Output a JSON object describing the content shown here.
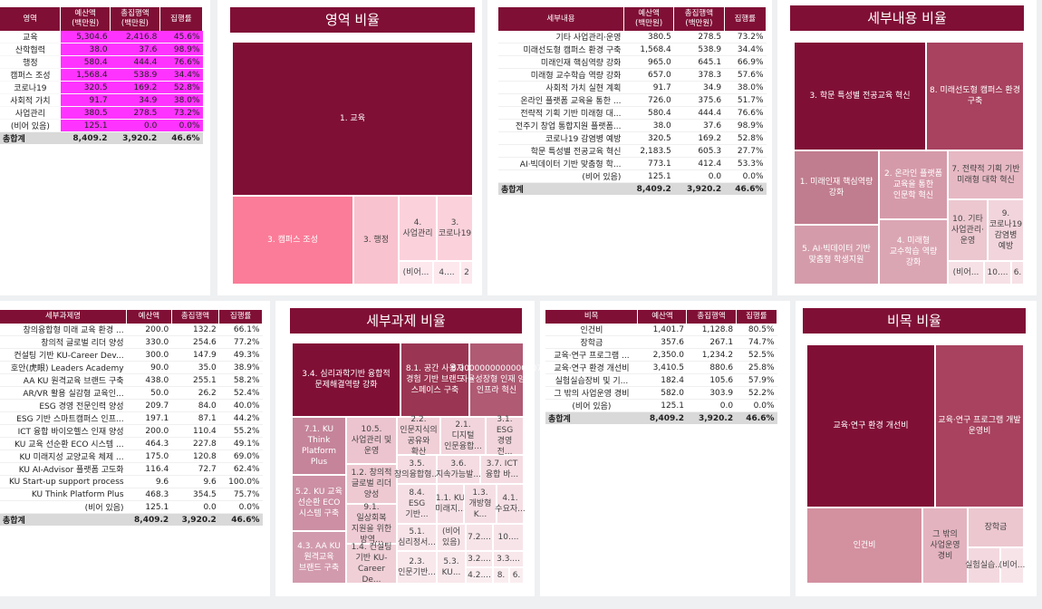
{
  "colors": {
    "accent": "#800f36",
    "magenta": "#ff33ff",
    "total_bg": "#d9d9d9"
  },
  "area_table": {
    "headers": [
      "영역",
      "예산액\n(백만원)",
      "총집행액\n(백만원)",
      "집행률"
    ],
    "rows": [
      [
        "교육",
        "5,304.6",
        "2,416.8",
        "45.6%"
      ],
      [
        "산학협력",
        "38.0",
        "37.6",
        "98.9%"
      ],
      [
        "행정",
        "580.4",
        "444.4",
        "76.6%"
      ],
      [
        "캠퍼스 조성",
        "1,568.4",
        "538.9",
        "34.4%"
      ],
      [
        "코로나19",
        "320.5",
        "169.2",
        "52.8%"
      ],
      [
        "사회적 가치",
        "91.7",
        "34.9",
        "38.0%"
      ],
      [
        "사업관리",
        "380.5",
        "278.5",
        "73.2%"
      ],
      [
        "(비어 있음)",
        "125.1",
        "0.0",
        "0.0%"
      ]
    ],
    "total": [
      "총합계",
      "8,409.2",
      "3,920.2",
      "46.6%"
    ]
  },
  "area_chart": {
    "title": "영역 비율",
    "cells": [
      "1. 교육",
      "3. 캠퍼스 조성",
      "3. 행정",
      "4. 사업관리",
      "3. 코로나19",
      "(비어...",
      "4....",
      "2"
    ]
  },
  "detail_table": {
    "headers": [
      "세부내용",
      "예산액\n(백만원)",
      "총집행액\n(백만원)",
      "집행률"
    ],
    "rows": [
      [
        "기타 사업관리·운영",
        "380.5",
        "278.5",
        "73.2%"
      ],
      [
        "미래선도형 캠퍼스 환경 구축",
        "1,568.4",
        "538.9",
        "34.4%"
      ],
      [
        "미래인재 핵심역량 강화",
        "965.0",
        "645.1",
        "66.9%"
      ],
      [
        "미래형 교수학습 역량 강화",
        "657.0",
        "378.3",
        "57.6%"
      ],
      [
        "사회적 가치 실현 계획",
        "91.7",
        "34.9",
        "38.0%"
      ],
      [
        "온라인 플랫폼 교육을 통한 ...",
        "726.0",
        "375.6",
        "51.7%"
      ],
      [
        "전략적 기획 기반 미래형 대...",
        "580.4",
        "444.4",
        "76.6%"
      ],
      [
        "전주기 창업 통합지원 플랫폼...",
        "38.0",
        "37.6",
        "98.9%"
      ],
      [
        "코로나19 감염병 예방",
        "320.5",
        "169.2",
        "52.8%"
      ],
      [
        "학문 특성별 전공교육 혁신",
        "2,183.5",
        "605.3",
        "27.7%"
      ],
      [
        "AI·빅데이터 기반 맞춤형 학...",
        "773.1",
        "412.4",
        "53.3%"
      ],
      [
        "(비어 있음)",
        "125.1",
        "0.0",
        "0.0%"
      ]
    ],
    "total": [
      "총합계",
      "8,409.2",
      "3,920.2",
      "46.6%"
    ]
  },
  "detail_chart": {
    "title": "세부내용 비율",
    "cells": [
      "3. 학문 특성별 전공교육 혁신",
      "8. 미래선도형 캠퍼스 환경 구축",
      "1. 미래인재 핵심역량 강화",
      "2. 온라인 플랫폼 교육을 통한 인문학 혁신",
      "7. 전략적 기획 기반 미래형 대학 혁신",
      "10. 기타 사업관리·운영",
      "9. 코로나19 감염병 예방",
      "5. AI·빅데이터 기반 맞춤형 학생지원",
      "4. 미래형 교수학습 역량 강화",
      "(비어...",
      "10....",
      "6."
    ]
  },
  "subtask_table": {
    "headers": [
      "세부과제명",
      "예산액",
      "총집행액",
      "집행률"
    ],
    "rows": [
      [
        "창의융합형 미래 교육 환경 ...",
        "200.0",
        "132.2",
        "66.1%"
      ],
      [
        "창의적 글로벌 리더 양성",
        "330.0",
        "254.6",
        "77.2%"
      ],
      [
        "컨설팅 기반 KU-Career Dev...",
        "300.0",
        "147.9",
        "49.3%"
      ],
      [
        "호안(虎眼) Leaders Academy",
        "90.0",
        "35.0",
        "38.9%"
      ],
      [
        "AA KU 원격교육 브랜드 구축",
        "438.0",
        "255.1",
        "58.2%"
      ],
      [
        "AR/VR 활용 실감형 교육인...",
        "50.0",
        "26.2",
        "52.4%"
      ],
      [
        "ESG 경영 전문인력 양성",
        "209.7",
        "84.0",
        "40.0%"
      ],
      [
        "ESG 기반 스마트캠퍼스 인프...",
        "197.1",
        "87.1",
        "44.2%"
      ],
      [
        "ICT 융합 바이오헬스 인재 양성",
        "200.0",
        "110.4",
        "55.2%"
      ],
      [
        "KU 교육 선순환 ECO 시스템 ...",
        "464.3",
        "227.8",
        "49.1%"
      ],
      [
        "KU 미래지성 교양교육 체제 ...",
        "175.0",
        "120.8",
        "69.0%"
      ],
      [
        "KU AI-Advisor 플랫폼 고도화",
        "116.4",
        "72.7",
        "62.4%"
      ],
      [
        "KU Start-up support process",
        "9.6",
        "9.6",
        "100.0%"
      ],
      [
        "KU Think Platform Plus",
        "468.3",
        "354.5",
        "75.7%"
      ],
      [
        "(비어 있음)",
        "125.1",
        "0.0",
        "0.0%"
      ]
    ],
    "total": [
      "총합계",
      "8,409.2",
      "3,920.2",
      "46.6%"
    ]
  },
  "subtask_chart": {
    "title": "세부과제 비율",
    "cells": [
      "3.4. 심리과학기반 융합적 문제해결역량 강화",
      "8.1. 공간 사용자 경험 기반 브랜드 스페이스 구축",
      "8.3000000000000007 자율성장형 인재 양성 인프라 혁신",
      "7.1. KU Think Platform Plus",
      "10.5. 사업관리 및 운영",
      "2.2. 인문지식의 공유와 확산",
      "2.1. 디지털 인문융합...",
      "3.1. ESG 경영 전...",
      "5.2. KU 교육 선순환 ECO 시스템 구축",
      "1.2. 창의적 글로벌 리더 양성",
      "3.5. 창의융합형...",
      "3.6. 지속가능발...",
      "3.7. ICT 융합 바...",
      "9.1. 일상회복 지원을 위한 방역...",
      "8.4. ESG 기반...",
      "1.1. KU 미래지...",
      "1.3. 개방형 K...",
      "4.1. 수요자...",
      "4.3. AA KU 원격교육 브랜드 구축",
      "1.4. 컨설팅 기반 KU-Career De...",
      "5.1. 심리정서...",
      "(비어 있음)",
      "7.2....",
      "10....",
      "2.3. 인문기반...",
      "5.3. KU...",
      "3.2....",
      "3.3....",
      "4.2....",
      "8.",
      "6."
    ]
  },
  "item_table": {
    "headers": [
      "비목",
      "예산액",
      "총집행액",
      "집행률"
    ],
    "rows": [
      [
        "인건비",
        "1,401.7",
        "1,128.8",
        "80.5%"
      ],
      [
        "장학금",
        "357.6",
        "267.1",
        "74.7%"
      ],
      [
        "교육·연구 프로그램 ...",
        "2,350.0",
        "1,234.2",
        "52.5%"
      ],
      [
        "교육·연구 환경 개선비",
        "3,410.5",
        "880.6",
        "25.8%"
      ],
      [
        "실험실습장비 및 기...",
        "182.4",
        "105.6",
        "57.9%"
      ],
      [
        "그 밖의 사업운영 경비",
        "582.0",
        "303.9",
        "52.2%"
      ],
      [
        "(비어 있음)",
        "125.1",
        "0.0",
        "0.0%"
      ]
    ],
    "total": [
      "총합계",
      "8,409.2",
      "3,920.2",
      "46.6%"
    ]
  },
  "item_chart": {
    "title": "비목 비율",
    "cells": [
      "교육·연구 환경 개선비",
      "교육·연구 프로그램 개발 운영비",
      "인건비",
      "그 밖의 사업운영 경비",
      "장학금",
      "실험실습...",
      "(비어..."
    ]
  }
}
